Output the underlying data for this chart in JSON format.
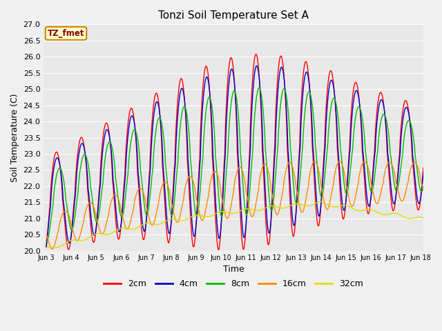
{
  "title": "Tonzi Soil Temperature Set A",
  "xlabel": "Time",
  "ylabel": "Soil Temperature (C)",
  "ylim": [
    20.0,
    27.0
  ],
  "yticks": [
    20.0,
    20.5,
    21.0,
    21.5,
    22.0,
    22.5,
    23.0,
    23.5,
    24.0,
    24.5,
    25.0,
    25.5,
    26.0,
    26.5,
    27.0
  ],
  "annotation_text": "TZ_fmet",
  "annotation_bg": "#ffffcc",
  "annotation_border": "#cc8800",
  "line_colors": {
    "2cm": "#ff0000",
    "4cm": "#0000cc",
    "8cm": "#00bb00",
    "16cm": "#ff8800",
    "32cm": "#dddd00"
  },
  "legend_labels": [
    "2cm",
    "4cm",
    "8cm",
    "16cm",
    "32cm"
  ],
  "fig_bg": "#f0f0f0",
  "plot_bg": "#e8e8e8",
  "xtick_labels": [
    "Jun 3",
    "Jun 4",
    "Jun 5",
    "Jun 6",
    "Jun 7",
    "Jun 8",
    "Jun 9",
    "Jun 10",
    "Jun 11",
    "Jun 12",
    "Jun 13",
    "Jun 14",
    "Jun 15",
    "Jun 16",
    "Jun 17",
    "Jun 18"
  ],
  "n_days": 16,
  "start_day": 3
}
